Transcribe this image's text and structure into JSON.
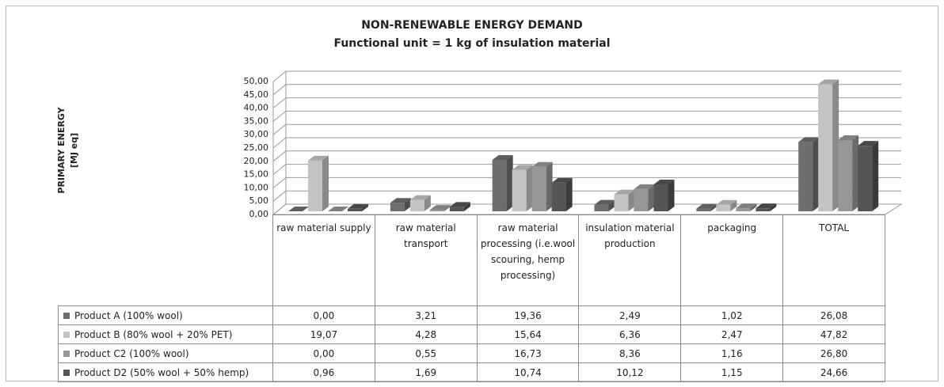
{
  "chart_data": {
    "type": "bar3d",
    "title": "NON-RENEWABLE ENERGY DEMAND",
    "subtitle": "Functional unit = 1 kg of insulation material",
    "y_label": "PRIMARY ENERGY",
    "y_unit": "[MJ eq]",
    "categories": [
      "raw material supply",
      "raw material transport",
      "raw material processing (i.e.wool scouring, hemp processing)",
      "insulation material production",
      "packaging",
      "TOTAL"
    ],
    "series": [
      {
        "name": "Product A (100% wool)",
        "color": "#6e6e6e",
        "values": [
          0.0,
          3.21,
          19.36,
          2.49,
          1.02,
          26.08
        ],
        "value_labels": [
          "0,00",
          "3,21",
          "19,36",
          "2,49",
          "1,02",
          "26,08"
        ]
      },
      {
        "name": "Product B (80% wool + 20% PET)",
        "color": "#c3c3c3",
        "values": [
          19.07,
          4.28,
          15.64,
          6.36,
          2.47,
          47.82
        ],
        "value_labels": [
          "19,07",
          "4,28",
          "15,64",
          "6,36",
          "2,47",
          "47,82"
        ]
      },
      {
        "name": "Product C2 (100% wool)",
        "color": "#979797",
        "values": [
          0.0,
          0.55,
          16.73,
          8.36,
          1.16,
          26.8
        ],
        "value_labels": [
          "0,00",
          "0,55",
          "16,73",
          "8,36",
          "1,16",
          "26,80"
        ]
      },
      {
        "name": "Product D2 (50% wool + 50% hemp)",
        "color": "#555555",
        "values": [
          0.96,
          1.69,
          10.74,
          10.12,
          1.15,
          24.66
        ],
        "value_labels": [
          "0,96",
          "1,69",
          "10,74",
          "10,12",
          "1,15",
          "24,66"
        ]
      }
    ],
    "ylim": [
      0,
      50
    ],
    "yticks": [
      {
        "value": 0,
        "label": "0,00"
      },
      {
        "value": 5,
        "label": "5,00"
      },
      {
        "value": 10,
        "label": "10,00"
      },
      {
        "value": 15,
        "label": "15,00"
      },
      {
        "value": 20,
        "label": "20,00"
      },
      {
        "value": 25,
        "label": "25,00"
      },
      {
        "value": 30,
        "label": "30,00"
      },
      {
        "value": 35,
        "label": "35,00"
      },
      {
        "value": 40,
        "label": "40,00"
      },
      {
        "value": 45,
        "label": "45,00"
      },
      {
        "value": 50,
        "label": "50,00"
      }
    ],
    "grid": true
  }
}
